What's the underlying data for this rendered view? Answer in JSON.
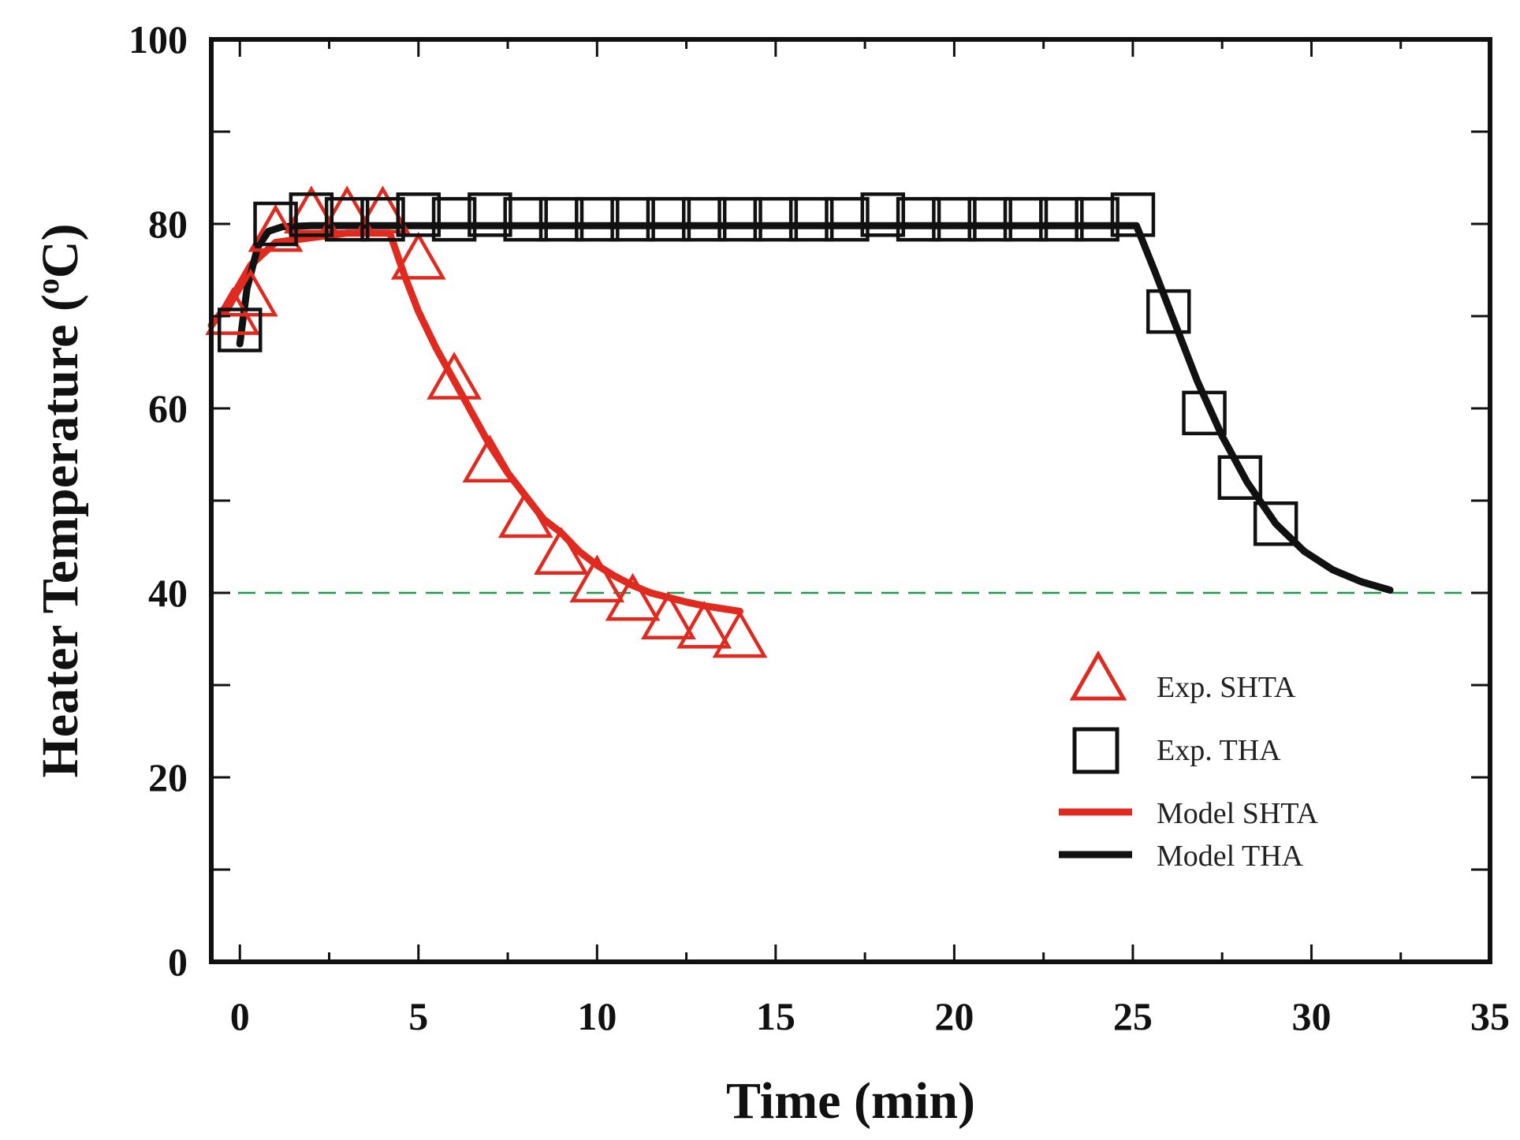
{
  "chart_data": {
    "type": "scatter",
    "title": "",
    "xlabel": "Time (min)",
    "ylabel_main": "Heater Temperature (",
    "ylabel_sup": "o",
    "ylabel_unit": "C)",
    "xlim": [
      -0.8,
      35
    ],
    "ylim": [
      0,
      100
    ],
    "xticks": [
      0,
      5,
      10,
      15,
      20,
      25,
      30,
      35
    ],
    "yticks": [
      0,
      20,
      40,
      60,
      80,
      100
    ],
    "y_minor_ticks": [
      10,
      30,
      50,
      70,
      90
    ],
    "x_minor_ticks": [
      2.5,
      7.5,
      12.5,
      17.5,
      22.5,
      27.5,
      32.5
    ],
    "reference_line": {
      "y": 40,
      "color": "#1f9a4a"
    },
    "legend_position": "right-center",
    "series": [
      {
        "name": "Exp. SHTA",
        "kind": "marker",
        "marker": "triangle",
        "color": "#e02a1f",
        "x": [
          -0.2,
          0.3,
          1,
          2,
          3,
          4,
          5,
          6,
          7,
          8,
          9,
          10,
          11,
          12,
          13,
          14
        ],
        "y": [
          70,
          72,
          79,
          81,
          81,
          81,
          76,
          63,
          54,
          48,
          44,
          41,
          39,
          37,
          36,
          35
        ]
      },
      {
        "name": "Exp. THA",
        "kind": "marker",
        "marker": "square",
        "color": "#111111",
        "x": [
          0,
          1,
          2,
          3,
          4,
          5,
          6,
          7,
          8,
          9,
          10,
          11,
          12,
          13,
          14,
          15,
          16,
          17,
          18,
          19,
          20,
          21,
          22,
          23,
          24,
          25,
          26,
          27,
          28,
          29
        ],
        "y": [
          68.5,
          80,
          81,
          80.5,
          80.5,
          81,
          80.5,
          81,
          80.5,
          80.5,
          80.5,
          80.5,
          80.5,
          80.5,
          80.5,
          80.5,
          80.5,
          80.5,
          81,
          80.5,
          80.5,
          80.5,
          80.5,
          80.5,
          80.5,
          81,
          70.5,
          59.5,
          52.5,
          47.5
        ]
      },
      {
        "name": "Model SHTA",
        "kind": "line",
        "color": "#e02a1f",
        "x": [
          -0.8,
          -0.3,
          0.3,
          1,
          2,
          3,
          4.2,
          4.6,
          5,
          5.5,
          6,
          6.5,
          7,
          7.5,
          8,
          8.5,
          9,
          9.5,
          10,
          10.5,
          11,
          11.5,
          12,
          12.5,
          13,
          13.5,
          14
        ],
        "y": [
          69,
          71.5,
          75.5,
          78,
          78.5,
          79,
          79,
          74.5,
          70.5,
          66.5,
          63,
          59.5,
          56,
          53,
          50.5,
          48,
          46.5,
          44.5,
          43,
          41.8,
          40.8,
          40,
          39.5,
          39,
          38.6,
          38.3,
          38
        ]
      },
      {
        "name": "Model THA",
        "kind": "line",
        "color": "#111111",
        "x": [
          0,
          0.2,
          0.5,
          0.8,
          1.2,
          2,
          5,
          10,
          15,
          20,
          25.1,
          25.6,
          26.2,
          26.8,
          27.5,
          28.2,
          29,
          29.8,
          30.6,
          31.4,
          32.2
        ],
        "y": [
          67,
          73,
          77.5,
          79.2,
          79.7,
          79.8,
          79.8,
          79.8,
          79.8,
          79.8,
          79.8,
          75,
          69,
          63,
          57,
          52,
          47.5,
          44.5,
          42.5,
          41.2,
          40.3
        ]
      }
    ]
  }
}
